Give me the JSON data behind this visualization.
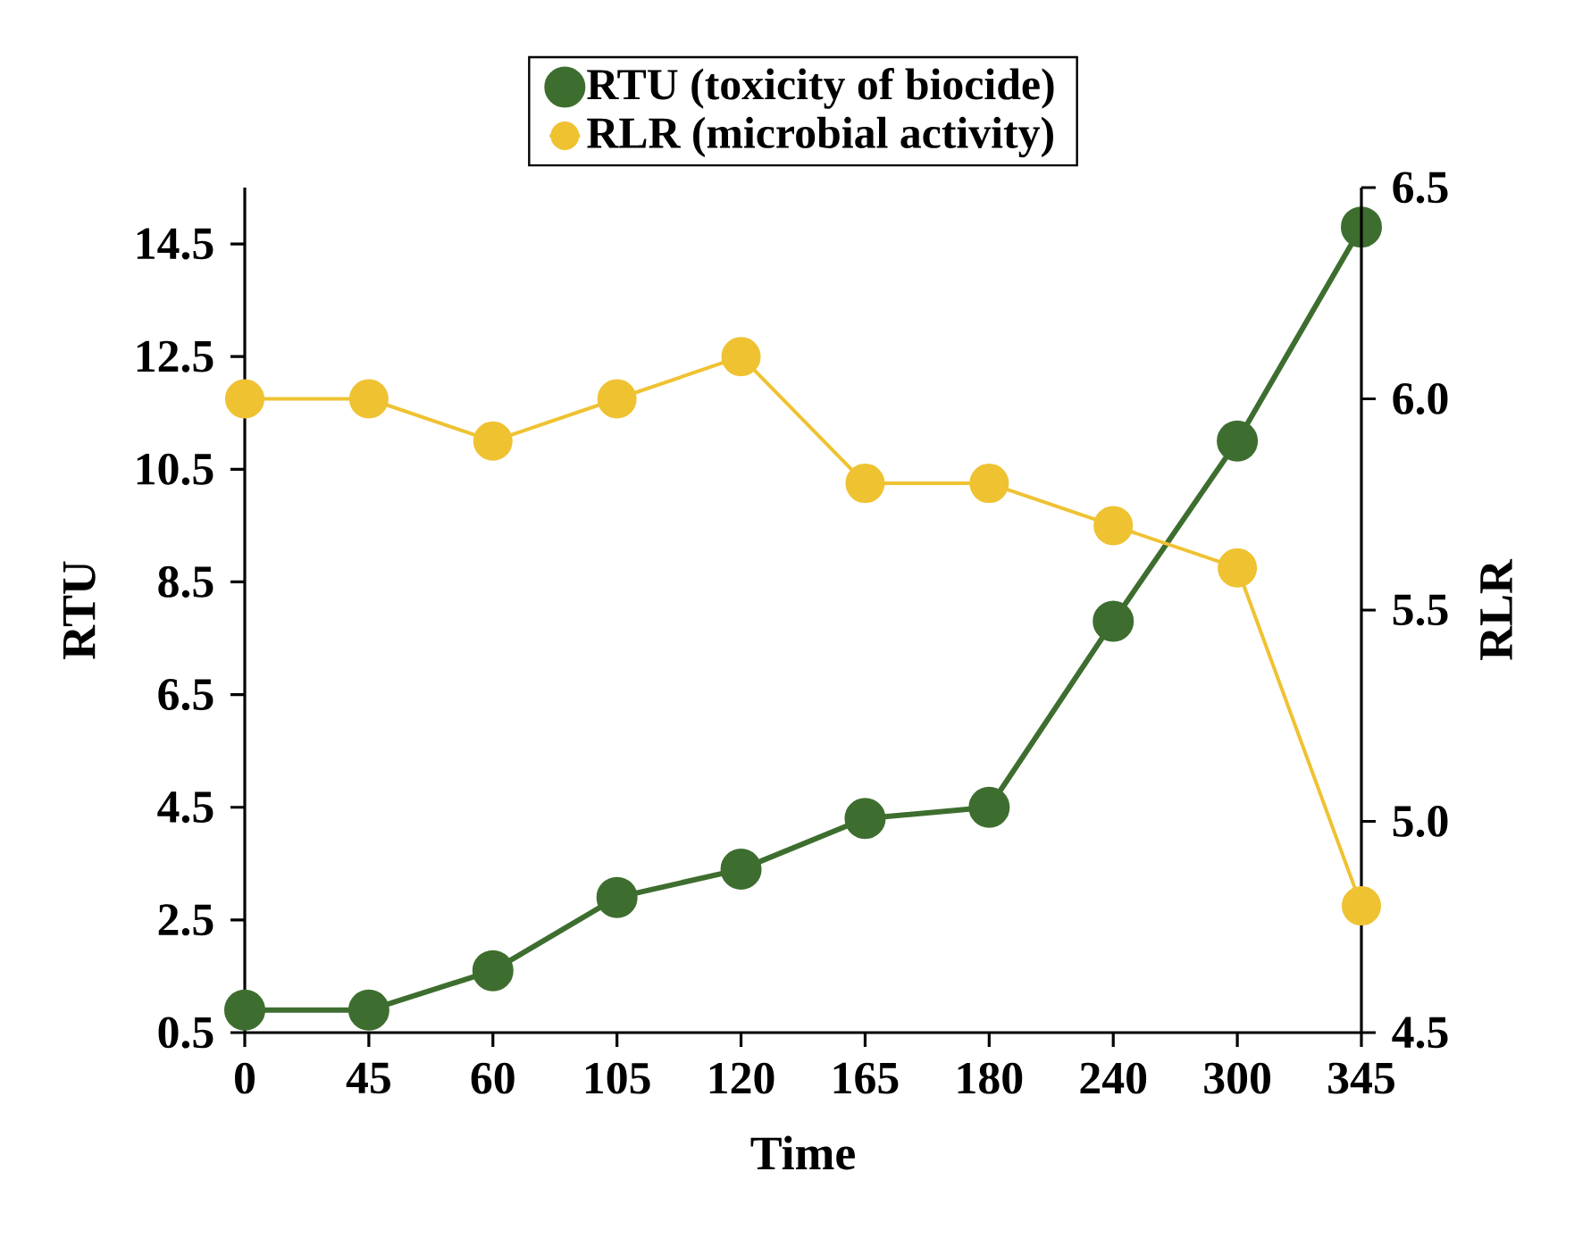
{
  "chart_data": {
    "type": "line",
    "xlabel": "Time",
    "ylabel": "RTU",
    "y2label": "RLR",
    "categories": [
      "0",
      "45",
      "60",
      "105",
      "120",
      "165",
      "180",
      "240",
      "300",
      "345"
    ],
    "series": [
      {
        "name": "RTU (toxicity of biocide)",
        "color": "#3e6e2f",
        "values": [
          0.9,
          0.9,
          1.6,
          2.9,
          3.4,
          4.3,
          4.5,
          7.8,
          11.0,
          14.8
        ]
      },
      {
        "name": "RLR (microbial activity)",
        "color": "#efc232",
        "axis": "y2",
        "values": [
          6.0,
          6.0,
          5.9,
          6.0,
          6.1,
          5.8,
          5.8,
          5.7,
          5.6,
          4.8
        ]
      }
    ],
    "ylim": [
      0.5,
      15.5
    ],
    "yticks": [
      0.5,
      2.5,
      4.5,
      6.5,
      8.5,
      10.5,
      12.5,
      14.5
    ],
    "y2lim": [
      4.5,
      6.5
    ],
    "y2ticks": [
      4.5,
      {
        "value": 5,
        "label": "5.0"
      },
      5.5,
      {
        "value": 6,
        "label": "6.0"
      },
      6.5
    ],
    "marker": "circle",
    "legend": "top",
    "grid": false
  }
}
